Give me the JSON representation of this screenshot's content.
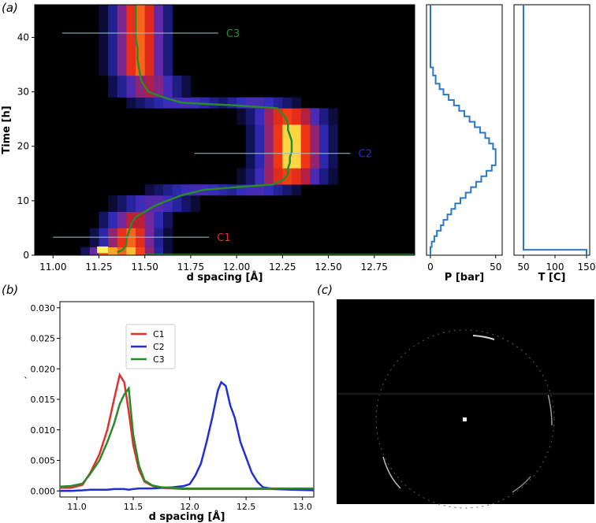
{
  "panel_labels": {
    "a": "(a)",
    "b": "(b)",
    "c": "(c)"
  },
  "colors": {
    "c1": "#e03030",
    "c2": "#2030d0",
    "c3": "#2a8a2a",
    "p_curve": "#2a78c8",
    "t_curve": "#2a78c8",
    "heatmap_background": "#000000",
    "diffraction_background": "#000000"
  },
  "chart_data": [
    {
      "id": "a-main",
      "type": "heatmap",
      "xlabel": "d spacing [Å]",
      "ylabel": "Time [h]",
      "xlim": [
        10.9,
        12.97
      ],
      "ylim": [
        0,
        46
      ],
      "xticks": [
        "11.00",
        "11.25",
        "11.50",
        "11.75",
        "12.00",
        "12.25",
        "12.50",
        "12.75"
      ],
      "yticks": [
        "0",
        "10",
        "20",
        "30",
        "40"
      ],
      "colormap": "dark-blue-red-yellow",
      "peak_track": {
        "color": "#2a8a2a",
        "time": [
          0.5,
          1,
          2,
          3,
          4,
          5,
          6,
          7,
          8,
          9,
          10,
          11,
          12,
          12.5,
          13,
          14,
          15,
          16,
          17,
          18,
          19,
          20,
          21,
          22,
          23,
          24,
          25,
          26,
          27,
          27.5,
          28,
          29,
          30,
          31,
          32,
          34,
          36,
          38,
          40,
          42,
          44,
          46
        ],
        "d": [
          11.35,
          11.38,
          11.4,
          11.4,
          11.41,
          11.42,
          11.43,
          11.45,
          11.5,
          11.55,
          11.62,
          11.7,
          11.82,
          12.0,
          12.2,
          12.26,
          12.28,
          12.28,
          12.29,
          12.29,
          12.3,
          12.3,
          12.3,
          12.29,
          12.28,
          12.28,
          12.27,
          12.25,
          12.22,
          12.0,
          11.7,
          11.6,
          11.52,
          11.5,
          11.48,
          11.47,
          11.46,
          11.46,
          11.45,
          11.45,
          11.45,
          11.45
        ]
      },
      "heatmap": {
        "rows": [
          {
            "t0": 0,
            "t1": 1.5,
            "centers": [
              11.31,
              11.42
            ],
            "widths": [
              0.1,
              0.14
            ],
            "peak": 0.95
          },
          {
            "t0": 1.5,
            "t1": 5,
            "centers": [
              11.42
            ],
            "widths": [
              0.14
            ],
            "peak": 0.85
          },
          {
            "t0": 5,
            "t1": 8,
            "centers": [
              11.45
            ],
            "widths": [
              0.15
            ],
            "peak": 0.6
          },
          {
            "t0": 8,
            "t1": 11,
            "centers": [
              11.55
            ],
            "widths": [
              0.18
            ],
            "peak": 0.4
          },
          {
            "t0": 11,
            "t1": 13,
            "centers": [
              11.8,
              12.1
            ],
            "widths": [
              0.25,
              0.2
            ],
            "peak": 0.35
          },
          {
            "t0": 13,
            "t1": 16,
            "centers": [
              12.28
            ],
            "widths": [
              0.17
            ],
            "peak": 0.8
          },
          {
            "t0": 16,
            "t1": 24,
            "centers": [
              12.3
            ],
            "widths": [
              0.16
            ],
            "peak": 1.0
          },
          {
            "t0": 24,
            "t1": 27,
            "centers": [
              12.28
            ],
            "widths": [
              0.17
            ],
            "peak": 0.8
          },
          {
            "t0": 27,
            "t1": 29,
            "centers": [
              11.7,
              12.1
            ],
            "widths": [
              0.25,
              0.2
            ],
            "peak": 0.35
          },
          {
            "t0": 29,
            "t1": 33,
            "centers": [
              11.52
            ],
            "widths": [
              0.16
            ],
            "peak": 0.55
          },
          {
            "t0": 33,
            "t1": 46,
            "centers": [
              11.47
            ],
            "widths": [
              0.13
            ],
            "peak": 0.85
          }
        ]
      },
      "annotations": [
        {
          "label": "C1",
          "time": 3.3,
          "x_from": 11.0,
          "x_to": 11.85,
          "color": "#e03030"
        },
        {
          "label": "C2",
          "time": 18.7,
          "x_from": 11.77,
          "x_to": 12.62,
          "color": "#2030d0"
        },
        {
          "label": "C3",
          "time": 40.8,
          "x_from": 11.05,
          "x_to": 11.9,
          "color": "#2a8a2a"
        }
      ]
    },
    {
      "id": "a-pressure",
      "type": "line",
      "xlabel": "P [bar]",
      "xlim": [
        -3,
        55
      ],
      "ylim": [
        0,
        46
      ],
      "xticks": [
        "0",
        "50"
      ],
      "x": [
        0,
        0,
        1,
        1,
        3,
        3,
        5,
        5,
        8,
        8,
        10,
        10,
        13,
        13,
        16,
        16,
        19,
        19,
        23,
        23,
        27,
        27,
        31,
        31,
        35,
        35,
        39,
        39,
        43,
        43,
        47,
        47,
        50,
        50,
        48,
        48,
        45,
        45,
        42,
        42,
        38,
        38,
        34,
        34,
        30,
        30,
        26,
        26,
        22,
        22,
        18,
        18,
        14,
        14,
        10,
        10,
        7,
        7,
        4,
        4,
        2,
        2,
        0,
        0
      ],
      "y": [
        0,
        1.5,
        1.5,
        2.5,
        2.5,
        3.5,
        3.5,
        4.5,
        4.5,
        5.5,
        5.5,
        6.5,
        6.5,
        7.5,
        7.5,
        8.5,
        8.5,
        9.5,
        9.5,
        10.5,
        10.5,
        11.5,
        11.5,
        12.5,
        12.5,
        13.5,
        13.5,
        14.5,
        14.5,
        15.5,
        15.5,
        16.5,
        16.5,
        19.5,
        19.5,
        20.5,
        20.5,
        21.5,
        21.5,
        22.5,
        22.5,
        23.5,
        23.5,
        24.5,
        24.5,
        25.5,
        25.5,
        26.5,
        26.5,
        27.5,
        27.5,
        28.5,
        28.5,
        29.5,
        29.5,
        30.5,
        30.5,
        31.5,
        31.5,
        33,
        33,
        34.5,
        34.5,
        46
      ]
    },
    {
      "id": "a-temperature",
      "type": "line",
      "xlabel": "T [C]",
      "xlim": [
        35,
        155
      ],
      "ylim": [
        0,
        46
      ],
      "xticks": [
        "50",
        "100",
        "150"
      ],
      "x": [
        150,
        150,
        50,
        50
      ],
      "y": [
        0,
        1.0,
        1.0,
        46
      ]
    },
    {
      "id": "b",
      "type": "line",
      "xlabel": "d spacing [Å]",
      "ylabel": "`",
      "xlim": [
        10.85,
        13.1
      ],
      "ylim": [
        -0.001,
        0.031
      ],
      "xticks": [
        "11.0",
        "11.5",
        "12.0",
        "12.5",
        "13.0"
      ],
      "yticks": [
        "0.000",
        "0.005",
        "0.010",
        "0.015",
        "0.020",
        "0.025",
        "0.030"
      ],
      "legend_position": "upper-left",
      "x": [
        10.85,
        10.95,
        11.05,
        11.12,
        11.2,
        11.27,
        11.33,
        11.38,
        11.42,
        11.46,
        11.5,
        11.55,
        11.6,
        11.67,
        11.75,
        11.85,
        11.95,
        12.0,
        12.05,
        12.1,
        12.15,
        12.2,
        12.25,
        12.28,
        12.32,
        12.36,
        12.4,
        12.45,
        12.5,
        12.55,
        12.6,
        12.65,
        12.75,
        12.9,
        13.1
      ],
      "series": [
        {
          "name": "C1",
          "color": "#e03030",
          "values": [
            0.0005,
            0.0005,
            0.001,
            0.003,
            0.006,
            0.01,
            0.015,
            0.019,
            0.0178,
            0.013,
            0.0075,
            0.0035,
            0.0015,
            0.0008,
            0.0005,
            0.0004,
            0.0003,
            0.0003,
            0.0003,
            0.0003,
            0.0003,
            0.0003,
            0.0003,
            0.0003,
            0.0003,
            0.0003,
            0.0003,
            0.0003,
            0.0003,
            0.0003,
            0.0003,
            0.0003,
            0.0003,
            0.0003,
            0.0003
          ]
        },
        {
          "name": "C2",
          "color": "#2030d0",
          "values": [
            0.0,
            0.0,
            0.0001,
            0.0002,
            0.0002,
            0.0002,
            0.0003,
            0.0003,
            0.0003,
            0.0002,
            0.0003,
            0.0004,
            0.0004,
            0.0004,
            0.0005,
            0.0006,
            0.0008,
            0.0011,
            0.0025,
            0.0045,
            0.008,
            0.012,
            0.0165,
            0.0178,
            0.0172,
            0.014,
            0.012,
            0.008,
            0.0055,
            0.003,
            0.0015,
            0.0006,
            0.0003,
            0.0002,
            0.0001
          ]
        },
        {
          "name": "C3",
          "color": "#2a8a2a",
          "values": [
            0.0007,
            0.0008,
            0.0012,
            0.0028,
            0.005,
            0.008,
            0.011,
            0.0142,
            0.0158,
            0.0168,
            0.0092,
            0.0042,
            0.0017,
            0.0009,
            0.0006,
            0.0005,
            0.0004,
            0.0004,
            0.0004,
            0.0004,
            0.0004,
            0.0004,
            0.0004,
            0.0004,
            0.0004,
            0.0004,
            0.0004,
            0.0004,
            0.0004,
            0.0004,
            0.0004,
            0.0004,
            0.0004,
            0.0004,
            0.0004
          ]
        }
      ]
    }
  ],
  "legend": {
    "items": [
      "C1",
      "C2",
      "C3"
    ]
  }
}
